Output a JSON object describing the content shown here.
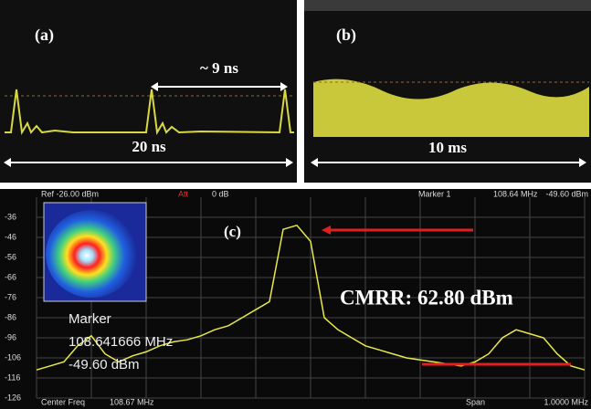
{
  "panels": {
    "a": {
      "label": "(a)",
      "period": "~ 9 ns",
      "span": "20 ns"
    },
    "b": {
      "label": "(b)",
      "span": "10 ms"
    }
  },
  "chart_data": {
    "type": "line",
    "label": "(c)",
    "annotation": "CMRR: 62.80 dBm",
    "color": "#e8e84a",
    "header": {
      "ref": "Ref -26.00 dBm",
      "att": "Att",
      "att_value": "0 dB",
      "marker": "Marker 1",
      "marker_freq": "108.64 MHz",
      "marker_level": "-49.60 dBm"
    },
    "footer": {
      "center": "Center Freq",
      "center_value": "108.67 MHz",
      "span": "Span",
      "span_value": "1.0000 MHz"
    },
    "marker_box": {
      "title": "Marker",
      "freq": "108.641666 MHz",
      "level": "-49.60 dBm"
    },
    "xlim": [
      108.17,
      109.17
    ],
    "ylim": [
      -126,
      -26
    ],
    "yticks": [
      -36,
      -46,
      -56,
      -66,
      -76,
      -86,
      -96,
      -106,
      -116,
      -126
    ],
    "grid": true,
    "x": [
      108.17,
      108.195,
      108.22,
      108.245,
      108.27,
      108.295,
      108.32,
      108.345,
      108.37,
      108.395,
      108.42,
      108.445,
      108.47,
      108.495,
      108.52,
      108.545,
      108.57,
      108.595,
      108.62,
      108.645,
      108.67,
      108.695,
      108.72,
      108.745,
      108.77,
      108.795,
      108.82,
      108.845,
      108.87,
      108.895,
      108.92,
      108.945,
      108.97,
      108.995,
      109.02,
      109.045,
      109.07,
      109.095,
      109.12,
      109.145,
      109.17
    ],
    "values": [
      -112,
      -110,
      -108,
      -100,
      -95,
      -104,
      -108,
      -105,
      -103,
      -100,
      -98,
      -97,
      -95,
      -92,
      -90,
      -86,
      -82,
      -78,
      -42,
      -40,
      -48,
      -86,
      -92,
      -96,
      -100,
      -102,
      -104,
      -106,
      -107,
      -108,
      -109,
      -110,
      -108,
      -104,
      -96,
      -92,
      -94,
      -96,
      -104,
      -110,
      -112
    ]
  }
}
